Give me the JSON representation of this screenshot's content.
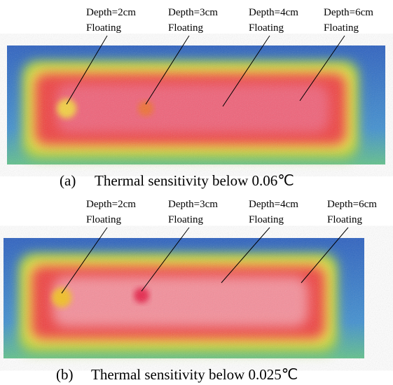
{
  "panels": [
    {
      "labels": [
        {
          "depth": "Depth=2cm",
          "state": "Floating"
        },
        {
          "depth": "Depth=3cm",
          "state": "Floating"
        },
        {
          "depth": "Depth=4cm",
          "state": "Floating"
        },
        {
          "depth": "Depth=6cm",
          "state": "Floating"
        }
      ],
      "caption": {
        "tag": "(a)",
        "text": "Thermal sensitivity below 0.06℃"
      }
    },
    {
      "labels": [
        {
          "depth": "Depth=2cm",
          "state": "Floating"
        },
        {
          "depth": "Depth=3cm",
          "state": "Floating"
        },
        {
          "depth": "Depth=4cm",
          "state": "Floating"
        },
        {
          "depth": "Depth=6cm",
          "state": "Floating"
        }
      ],
      "caption": {
        "tag": "(b)",
        "text": "Thermal sensitivity below 0.025℃"
      }
    }
  ]
}
